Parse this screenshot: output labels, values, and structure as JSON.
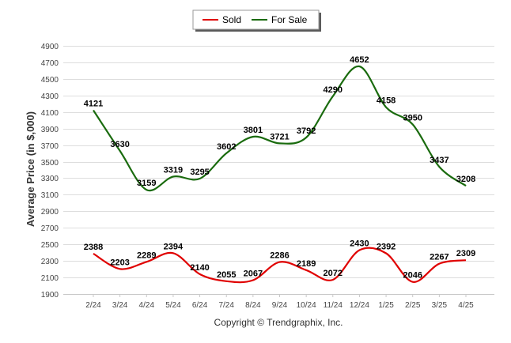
{
  "chart_data": {
    "type": "line",
    "categories": [
      "2/24",
      "3/24",
      "4/24",
      "5/24",
      "6/24",
      "7/24",
      "8/24",
      "9/24",
      "10/24",
      "11/24",
      "12/24",
      "1/25",
      "2/25",
      "3/25",
      "4/25"
    ],
    "series": [
      {
        "name": "Sold",
        "color": "#e00000",
        "values": [
          2388,
          2203,
          2289,
          2394,
          2140,
          2055,
          2067,
          2286,
          2189,
          2072,
          2430,
          2392,
          2046,
          2267,
          2309
        ]
      },
      {
        "name": "For Sale",
        "color": "#1a6b0e",
        "values": [
          4121,
          3630,
          3159,
          3319,
          3295,
          3602,
          3801,
          3721,
          3792,
          4290,
          4652,
          4158,
          3950,
          3437,
          3208
        ]
      }
    ],
    "ylabel": "Average Price (in $,000)",
    "ylim": [
      1900,
      4900
    ],
    "yticks": [
      1900,
      2100,
      2300,
      2500,
      2700,
      2900,
      3100,
      3300,
      3500,
      3700,
      3900,
      4100,
      4300,
      4500,
      4700,
      4900
    ],
    "grid": true,
    "legend_position": "top-center"
  },
  "copyright": "Copyright © Trendgraphix, Inc."
}
